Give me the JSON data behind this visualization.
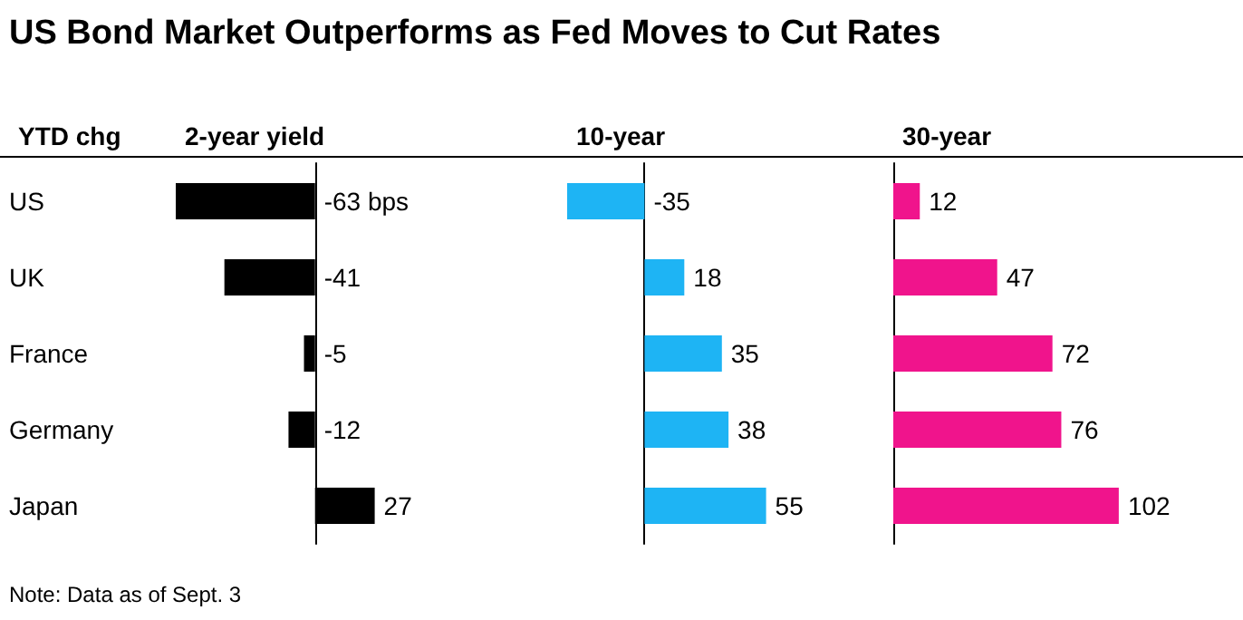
{
  "chart_data": [
    {
      "type": "bar",
      "orientation": "horizontal",
      "title": "US Bond Market Outperforms as Fed Moves to Cut Rates",
      "ylabel": "YTD chg",
      "xlabel": "2-year yield",
      "categories": [
        "US",
        "UK",
        "France",
        "Germany",
        "Japan"
      ],
      "values": [
        -63,
        -41,
        -5,
        -12,
        27
      ],
      "value_labels": [
        "-63 bps",
        "-41",
        "-5",
        "-12",
        "27"
      ],
      "color": "#000000",
      "tick_labels": "y",
      "annotations": [
        "Note: Data as of Sept. 3"
      ]
    },
    {
      "type": "bar",
      "orientation": "horizontal",
      "xlabel": "10-year",
      "categories": [
        null,
        null,
        null,
        null,
        null
      ],
      "values": [
        -35,
        18,
        35,
        38,
        55
      ],
      "data_labels": true,
      "color": "#1eb4f4",
      "tick_labels": false
    },
    {
      "type": "bar",
      "orientation": "horizontal",
      "xlabel": "30-year",
      "categories": [
        null,
        null,
        null,
        null,
        null
      ],
      "values": [
        12,
        47,
        72,
        76,
        102
      ],
      "data_labels": true,
      "color": "#f0148c",
      "tick_labels": false
    }
  ]
}
